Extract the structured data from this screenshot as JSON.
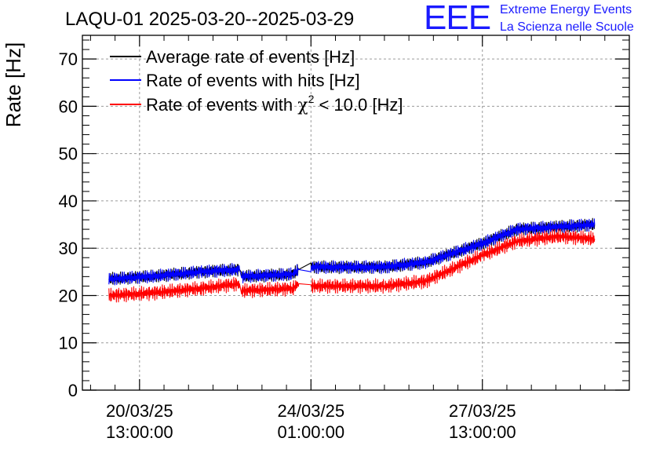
{
  "chart_data": {
    "type": "line",
    "title": "LAQU-01 2025-03-20--2025-03-29",
    "ylabel": "Rate [Hz]",
    "xlabel": "",
    "ylim": [
      0,
      75
    ],
    "y_ticks": [
      0,
      10,
      20,
      30,
      40,
      50,
      60,
      70
    ],
    "x_ticks": [
      {
        "t": 0,
        "line1": "20/03/25",
        "line2": "13:00:00"
      },
      {
        "t": 84,
        "line1": "24/03/25",
        "line2": "01:00:00"
      },
      {
        "t": 168,
        "line1": "27/03/25",
        "line2": "13:00:00"
      }
    ],
    "x_range_hours": [
      -28,
      240
    ],
    "grid": true,
    "legend_position": "top-left",
    "series": [
      {
        "name": "Average rate of events [Hz]",
        "color": "#000000",
        "x": [
          -15,
          5,
          30,
          49,
          50,
          75,
          78,
          84,
          120,
          140,
          168,
          185,
          205,
          223
        ],
        "values": [
          23.5,
          24,
          25,
          25.5,
          24,
          24.5,
          25.5,
          26,
          26,
          27,
          31,
          34,
          34.5,
          35
        ]
      },
      {
        "name": "Rate of events with hits [Hz]",
        "color": "#0000ff",
        "x": [
          -15,
          5,
          30,
          49,
          50,
          75,
          78,
          84,
          120,
          140,
          168,
          185,
          205,
          223
        ],
        "values": [
          23.5,
          24,
          25,
          25.5,
          24,
          24.5,
          25.5,
          26,
          26,
          27,
          31,
          34,
          34.5,
          35
        ]
      },
      {
        "name": "Rate of events with χ² < 10.0 [Hz]",
        "color": "#ff0000",
        "x": [
          -15,
          5,
          30,
          49,
          50,
          75,
          78,
          84,
          120,
          140,
          168,
          185,
          205,
          223
        ],
        "values": [
          20,
          20.5,
          21.5,
          22.5,
          21,
          21.5,
          22.5,
          22,
          22,
          23,
          28.5,
          31.5,
          32.5,
          32
        ]
      }
    ]
  },
  "legend": {
    "entries": [
      {
        "label": "Average rate of events [Hz]",
        "color": "#000000"
      },
      {
        "label": "Rate of events with hits [Hz]",
        "color": "#0000ff"
      },
      {
        "label_prefix": "Rate of events with ",
        "label_symbol": "χ",
        "label_sup": "2",
        "label_suffix": " < 10.0 [Hz]",
        "color": "#ff0000"
      }
    ]
  },
  "logo": {
    "letters": "EEE",
    "line1": "Extreme Energy Events",
    "line2": "La Scienza nelle Scuole",
    "color": "#1a1aff"
  }
}
